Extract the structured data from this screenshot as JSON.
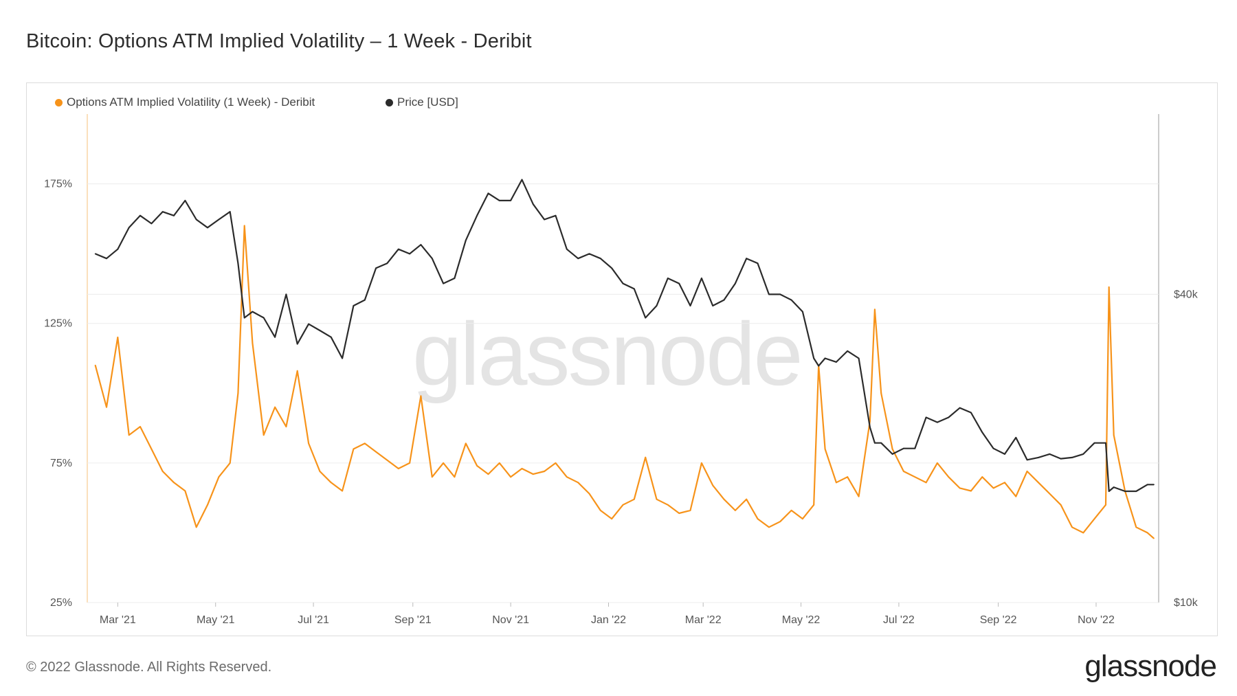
{
  "title": "Bitcoin: Options ATM Implied Volatility – 1 Week - Deribit",
  "footer": "© 2022 Glassnode. All Rights Reserved.",
  "brand": "glassnode",
  "watermark": "glassnode",
  "colors": {
    "volatility": "#f7931a",
    "price": "#2b2b2b",
    "grid": "#ececec"
  },
  "chart_data": {
    "type": "line",
    "title": "Bitcoin: Options ATM Implied Volatility – 1 Week - Deribit",
    "x_ticks": [
      "Mar '21",
      "May '21",
      "Jul '21",
      "Sep '21",
      "Nov '21",
      "Jan '22",
      "Mar '22",
      "May '22",
      "Jul '22",
      "Sep '22",
      "Nov '22"
    ],
    "y_left_ticks": [
      "25%",
      "75%",
      "125%",
      "175%"
    ],
    "y_left_range": [
      25,
      200
    ],
    "y_right_ticks": [
      "$10k",
      "$40k"
    ],
    "y_right_scale": "log",
    "y_right_range": [
      10000,
      90000
    ],
    "legend_position": "top-left",
    "grid": true,
    "series": [
      {
        "name": "Options ATM Implied Volatility (1 Week) - Deribit",
        "axis": "left",
        "unit": "%",
        "points": [
          [
            "2021-02-15",
            110
          ],
          [
            "2021-02-22",
            95
          ],
          [
            "2021-03-01",
            120
          ],
          [
            "2021-03-08",
            85
          ],
          [
            "2021-03-15",
            88
          ],
          [
            "2021-03-22",
            80
          ],
          [
            "2021-03-29",
            72
          ],
          [
            "2021-04-05",
            68
          ],
          [
            "2021-04-12",
            65
          ],
          [
            "2021-04-19",
            52
          ],
          [
            "2021-04-26",
            60
          ],
          [
            "2021-05-03",
            70
          ],
          [
            "2021-05-10",
            75
          ],
          [
            "2021-05-15",
            100
          ],
          [
            "2021-05-19",
            160
          ],
          [
            "2021-05-24",
            118
          ],
          [
            "2021-05-31",
            85
          ],
          [
            "2021-06-07",
            95
          ],
          [
            "2021-06-14",
            88
          ],
          [
            "2021-06-21",
            108
          ],
          [
            "2021-06-28",
            82
          ],
          [
            "2021-07-05",
            72
          ],
          [
            "2021-07-12",
            68
          ],
          [
            "2021-07-19",
            65
          ],
          [
            "2021-07-26",
            80
          ],
          [
            "2021-08-02",
            82
          ],
          [
            "2021-08-09",
            79
          ],
          [
            "2021-08-16",
            76
          ],
          [
            "2021-08-23",
            73
          ],
          [
            "2021-08-30",
            75
          ],
          [
            "2021-09-06",
            99
          ],
          [
            "2021-09-13",
            70
          ],
          [
            "2021-09-20",
            75
          ],
          [
            "2021-09-27",
            70
          ],
          [
            "2021-10-04",
            82
          ],
          [
            "2021-10-11",
            74
          ],
          [
            "2021-10-18",
            71
          ],
          [
            "2021-10-25",
            75
          ],
          [
            "2021-11-01",
            70
          ],
          [
            "2021-11-08",
            73
          ],
          [
            "2021-11-15",
            71
          ],
          [
            "2021-11-22",
            72
          ],
          [
            "2021-11-29",
            75
          ],
          [
            "2021-12-06",
            70
          ],
          [
            "2021-12-13",
            68
          ],
          [
            "2021-12-20",
            64
          ],
          [
            "2021-12-27",
            58
          ],
          [
            "2022-01-03",
            55
          ],
          [
            "2022-01-10",
            60
          ],
          [
            "2022-01-17",
            62
          ],
          [
            "2022-01-24",
            77
          ],
          [
            "2022-01-31",
            62
          ],
          [
            "2022-02-07",
            60
          ],
          [
            "2022-02-14",
            57
          ],
          [
            "2022-02-21",
            58
          ],
          [
            "2022-02-28",
            75
          ],
          [
            "2022-03-07",
            67
          ],
          [
            "2022-03-14",
            62
          ],
          [
            "2022-03-21",
            58
          ],
          [
            "2022-03-28",
            62
          ],
          [
            "2022-04-04",
            55
          ],
          [
            "2022-04-11",
            52
          ],
          [
            "2022-04-18",
            54
          ],
          [
            "2022-04-25",
            58
          ],
          [
            "2022-05-02",
            55
          ],
          [
            "2022-05-09",
            60
          ],
          [
            "2022-05-12",
            110
          ],
          [
            "2022-05-16",
            80
          ],
          [
            "2022-05-23",
            68
          ],
          [
            "2022-05-30",
            70
          ],
          [
            "2022-06-06",
            63
          ],
          [
            "2022-06-13",
            90
          ],
          [
            "2022-06-16",
            130
          ],
          [
            "2022-06-20",
            100
          ],
          [
            "2022-06-27",
            80
          ],
          [
            "2022-07-04",
            72
          ],
          [
            "2022-07-11",
            70
          ],
          [
            "2022-07-18",
            68
          ],
          [
            "2022-07-25",
            75
          ],
          [
            "2022-08-01",
            70
          ],
          [
            "2022-08-08",
            66
          ],
          [
            "2022-08-15",
            65
          ],
          [
            "2022-08-22",
            70
          ],
          [
            "2022-08-29",
            66
          ],
          [
            "2022-09-05",
            68
          ],
          [
            "2022-09-12",
            63
          ],
          [
            "2022-09-19",
            72
          ],
          [
            "2022-09-26",
            68
          ],
          [
            "2022-10-03",
            64
          ],
          [
            "2022-10-10",
            60
          ],
          [
            "2022-10-17",
            52
          ],
          [
            "2022-10-24",
            50
          ],
          [
            "2022-10-31",
            55
          ],
          [
            "2022-11-07",
            60
          ],
          [
            "2022-11-09",
            138
          ],
          [
            "2022-11-12",
            85
          ],
          [
            "2022-11-19",
            65
          ],
          [
            "2022-11-26",
            52
          ],
          [
            "2022-12-03",
            50
          ],
          [
            "2022-12-07",
            48
          ]
        ]
      },
      {
        "name": "Price [USD]",
        "axis": "right",
        "unit": "USD",
        "points": [
          [
            "2021-02-15",
            48000
          ],
          [
            "2021-02-22",
            47000
          ],
          [
            "2021-03-01",
            49000
          ],
          [
            "2021-03-08",
            54000
          ],
          [
            "2021-03-15",
            57000
          ],
          [
            "2021-03-22",
            55000
          ],
          [
            "2021-03-29",
            58000
          ],
          [
            "2021-04-05",
            57000
          ],
          [
            "2021-04-12",
            61000
          ],
          [
            "2021-04-19",
            56000
          ],
          [
            "2021-04-26",
            54000
          ],
          [
            "2021-05-03",
            56000
          ],
          [
            "2021-05-10",
            58000
          ],
          [
            "2021-05-15",
            46000
          ],
          [
            "2021-05-19",
            36000
          ],
          [
            "2021-05-24",
            37000
          ],
          [
            "2021-05-31",
            36000
          ],
          [
            "2021-06-07",
            33000
          ],
          [
            "2021-06-14",
            40000
          ],
          [
            "2021-06-21",
            32000
          ],
          [
            "2021-06-28",
            35000
          ],
          [
            "2021-07-05",
            34000
          ],
          [
            "2021-07-12",
            33000
          ],
          [
            "2021-07-19",
            30000
          ],
          [
            "2021-07-26",
            38000
          ],
          [
            "2021-08-02",
            39000
          ],
          [
            "2021-08-09",
            45000
          ],
          [
            "2021-08-16",
            46000
          ],
          [
            "2021-08-23",
            49000
          ],
          [
            "2021-08-30",
            48000
          ],
          [
            "2021-09-06",
            50000
          ],
          [
            "2021-09-13",
            47000
          ],
          [
            "2021-09-20",
            42000
          ],
          [
            "2021-09-27",
            43000
          ],
          [
            "2021-10-04",
            51000
          ],
          [
            "2021-10-11",
            57000
          ],
          [
            "2021-10-18",
            63000
          ],
          [
            "2021-10-25",
            61000
          ],
          [
            "2021-11-01",
            61000
          ],
          [
            "2021-11-08",
            67000
          ],
          [
            "2021-11-15",
            60000
          ],
          [
            "2021-11-22",
            56000
          ],
          [
            "2021-11-29",
            57000
          ],
          [
            "2021-12-06",
            49000
          ],
          [
            "2021-12-13",
            47000
          ],
          [
            "2021-12-20",
            48000
          ],
          [
            "2021-12-27",
            47000
          ],
          [
            "2022-01-03",
            45000
          ],
          [
            "2022-01-10",
            42000
          ],
          [
            "2022-01-17",
            41000
          ],
          [
            "2022-01-24",
            36000
          ],
          [
            "2022-01-31",
            38000
          ],
          [
            "2022-02-07",
            43000
          ],
          [
            "2022-02-14",
            42000
          ],
          [
            "2022-02-21",
            38000
          ],
          [
            "2022-02-28",
            43000
          ],
          [
            "2022-03-07",
            38000
          ],
          [
            "2022-03-14",
            39000
          ],
          [
            "2022-03-21",
            42000
          ],
          [
            "2022-03-28",
            47000
          ],
          [
            "2022-04-04",
            46000
          ],
          [
            "2022-04-11",
            40000
          ],
          [
            "2022-04-18",
            40000
          ],
          [
            "2022-04-25",
            39000
          ],
          [
            "2022-05-02",
            37000
          ],
          [
            "2022-05-09",
            30000
          ],
          [
            "2022-05-12",
            29000
          ],
          [
            "2022-05-16",
            30000
          ],
          [
            "2022-05-23",
            29500
          ],
          [
            "2022-05-30",
            31000
          ],
          [
            "2022-06-06",
            30000
          ],
          [
            "2022-06-13",
            22000
          ],
          [
            "2022-06-16",
            20500
          ],
          [
            "2022-06-20",
            20500
          ],
          [
            "2022-06-27",
            19500
          ],
          [
            "2022-07-04",
            20000
          ],
          [
            "2022-07-11",
            20000
          ],
          [
            "2022-07-18",
            23000
          ],
          [
            "2022-07-25",
            22500
          ],
          [
            "2022-08-01",
            23000
          ],
          [
            "2022-08-08",
            24000
          ],
          [
            "2022-08-15",
            23500
          ],
          [
            "2022-08-22",
            21500
          ],
          [
            "2022-08-29",
            20000
          ],
          [
            "2022-09-05",
            19500
          ],
          [
            "2022-09-12",
            21000
          ],
          [
            "2022-09-19",
            19000
          ],
          [
            "2022-09-26",
            19200
          ],
          [
            "2022-10-03",
            19500
          ],
          [
            "2022-10-10",
            19100
          ],
          [
            "2022-10-17",
            19200
          ],
          [
            "2022-10-24",
            19500
          ],
          [
            "2022-10-31",
            20500
          ],
          [
            "2022-11-07",
            20500
          ],
          [
            "2022-11-09",
            16500
          ],
          [
            "2022-11-12",
            16800
          ],
          [
            "2022-11-19",
            16500
          ],
          [
            "2022-11-26",
            16500
          ],
          [
            "2022-12-03",
            17000
          ],
          [
            "2022-12-07",
            17000
          ]
        ]
      }
    ]
  }
}
